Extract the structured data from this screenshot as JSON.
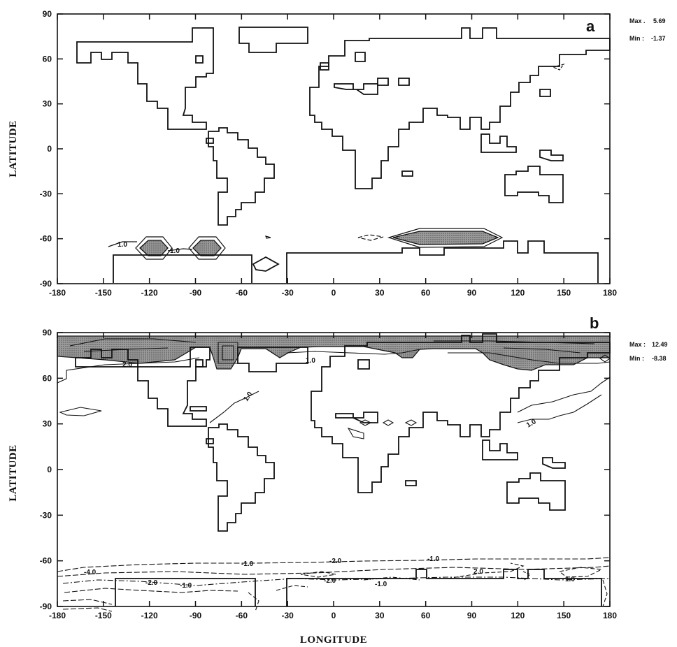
{
  "figure": {
    "xlabel": "LONGITUDE",
    "ylabel": "LATITUDE",
    "xticks": [
      "-180",
      "-150",
      "-120",
      "-90",
      "-60",
      "-30",
      "0",
      "30",
      "60",
      "90",
      "120",
      "150",
      "180"
    ],
    "yticks": [
      "90",
      "60",
      "30",
      "0",
      "-30",
      "-60",
      "-90"
    ]
  },
  "panels": [
    {
      "label": "a",
      "max_label": "Max .",
      "max_value": "5.69",
      "min_label": "Min :",
      "min_value": "-1.37",
      "contour_labels": [
        "1.0",
        "1.0"
      ]
    },
    {
      "label": "b",
      "max_label": "Max :",
      "max_value": "12.49",
      "min_label": "Min :",
      "min_value": "-8.38",
      "contour_labels": [
        "1.0",
        "1.0",
        "1.0",
        "2.0",
        "-1.0",
        "-2.0",
        "-1.0",
        "-4.0",
        "-2.0",
        "-1.0",
        "-2.0",
        "-1.0",
        "2.0",
        "1.0"
      ]
    }
  ],
  "chart_data": [
    {
      "type": "heatmap",
      "title": "a",
      "xlabel": "",
      "ylabel": "LATITUDE",
      "xlim": [
        -180,
        180
      ],
      "ylim": [
        -90,
        90
      ],
      "max": 5.69,
      "min": -1.37,
      "contours": [
        {
          "level": 1.0,
          "lon": [
            -130,
            -115
          ],
          "lat": [
            -68,
            -62
          ]
        },
        {
          "level": 1.0,
          "lon": [
            -95,
            -78
          ],
          "lat": [
            -68,
            -62
          ]
        },
        {
          "level": 1.0,
          "lon": [
            42,
            105
          ],
          "lat": [
            -63,
            -56
          ]
        }
      ]
    },
    {
      "type": "heatmap",
      "title": "b",
      "xlabel": "LONGITUDE",
      "ylabel": "LATITUDE",
      "xlim": [
        -180,
        180
      ],
      "ylim": [
        -90,
        90
      ],
      "max": 12.49,
      "min": -8.38,
      "contours": [
        {
          "level": 1.0,
          "lon": [
            -180,
            180
          ],
          "lat": [
            65,
            90
          ]
        },
        {
          "level": 2.0,
          "lon": [
            -180,
            180
          ],
          "lat": [
            75,
            90
          ]
        },
        {
          "level": -1.0,
          "lon": [
            -180,
            180
          ],
          "lat": [
            -90,
            -62
          ]
        },
        {
          "level": -2.0,
          "lon": [
            -180,
            180
          ],
          "lat": [
            -90,
            -64
          ]
        },
        {
          "level": -4.0,
          "lon": [
            -175,
            -150
          ],
          "lat": [
            -75,
            -68
          ]
        }
      ]
    }
  ]
}
